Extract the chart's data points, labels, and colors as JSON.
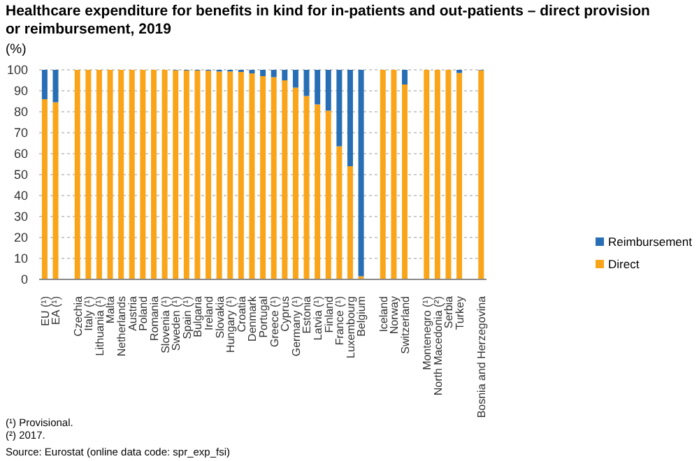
{
  "chart_data": {
    "type": "bar",
    "title": "Healthcare expenditure for benefits in kind for in-patients and out-patients – direct provision or reimbursement, 2019",
    "ylabel": "(%)",
    "categories": [
      "EU (¹)",
      "EA (¹)",
      null,
      "Czechia",
      "Italy (¹)",
      "Lithuania (¹)",
      "Malta",
      "Netherlands",
      "Austria",
      "Poland",
      "Romania",
      "Slovenia (¹)",
      "Sweden (¹)",
      "Spain (¹)",
      "Bulgaria",
      "Ireland",
      "Slovakia",
      "Hungary (¹)",
      "Croatia",
      "Denmark",
      "Portugal",
      "Greece (¹)",
      "Cyprus",
      "Germany (¹)",
      "Estonia",
      "Latvia (¹)",
      "Finland",
      "France (¹)",
      "Luxembourg",
      "Belgium",
      null,
      "Iceland",
      "Norway",
      "Switzerland",
      null,
      "Montenegro (¹)",
      "North Macedonia (²)",
      "Serbia",
      "Turkey",
      null,
      "Bosnia and Herzegovina"
    ],
    "series": [
      {
        "name": "Direct",
        "color": "#faa519",
        "values": [
          86,
          84.5,
          null,
          100,
          100,
          100,
          100,
          100,
          100,
          100,
          100,
          100,
          99.8,
          99.7,
          99.7,
          99.6,
          99.2,
          99.2,
          99,
          98.3,
          97,
          96.5,
          95,
          91.5,
          87.5,
          83.5,
          80.5,
          63.5,
          54,
          1.5,
          null,
          100,
          100,
          93,
          null,
          100,
          100,
          100,
          98.5,
          null,
          99.8
        ]
      },
      {
        "name": "Reimbursement",
        "color": "#286eb4",
        "values": [
          14,
          15.5,
          null,
          0,
          0,
          0,
          0,
          0,
          0,
          0,
          0,
          0,
          0.2,
          0.3,
          0.3,
          0.4,
          0.8,
          0.8,
          1,
          1.7,
          3,
          3.5,
          5,
          8.5,
          12.5,
          16.5,
          19.5,
          36.5,
          46,
          98.5,
          null,
          0,
          0,
          7,
          null,
          0,
          0,
          0,
          1.5,
          null,
          0.2
        ]
      }
    ],
    "stacked": true,
    "ylim": [
      0,
      100
    ],
    "yticks": [
      0,
      10,
      20,
      30,
      40,
      50,
      60,
      70,
      80,
      90,
      100
    ],
    "grid": "y",
    "legend": "right",
    "annotations": [
      "(¹) Provisional.",
      "(²) 2017.",
      "Source: Eurostat (online data code: spr_exp_fsi)"
    ]
  }
}
